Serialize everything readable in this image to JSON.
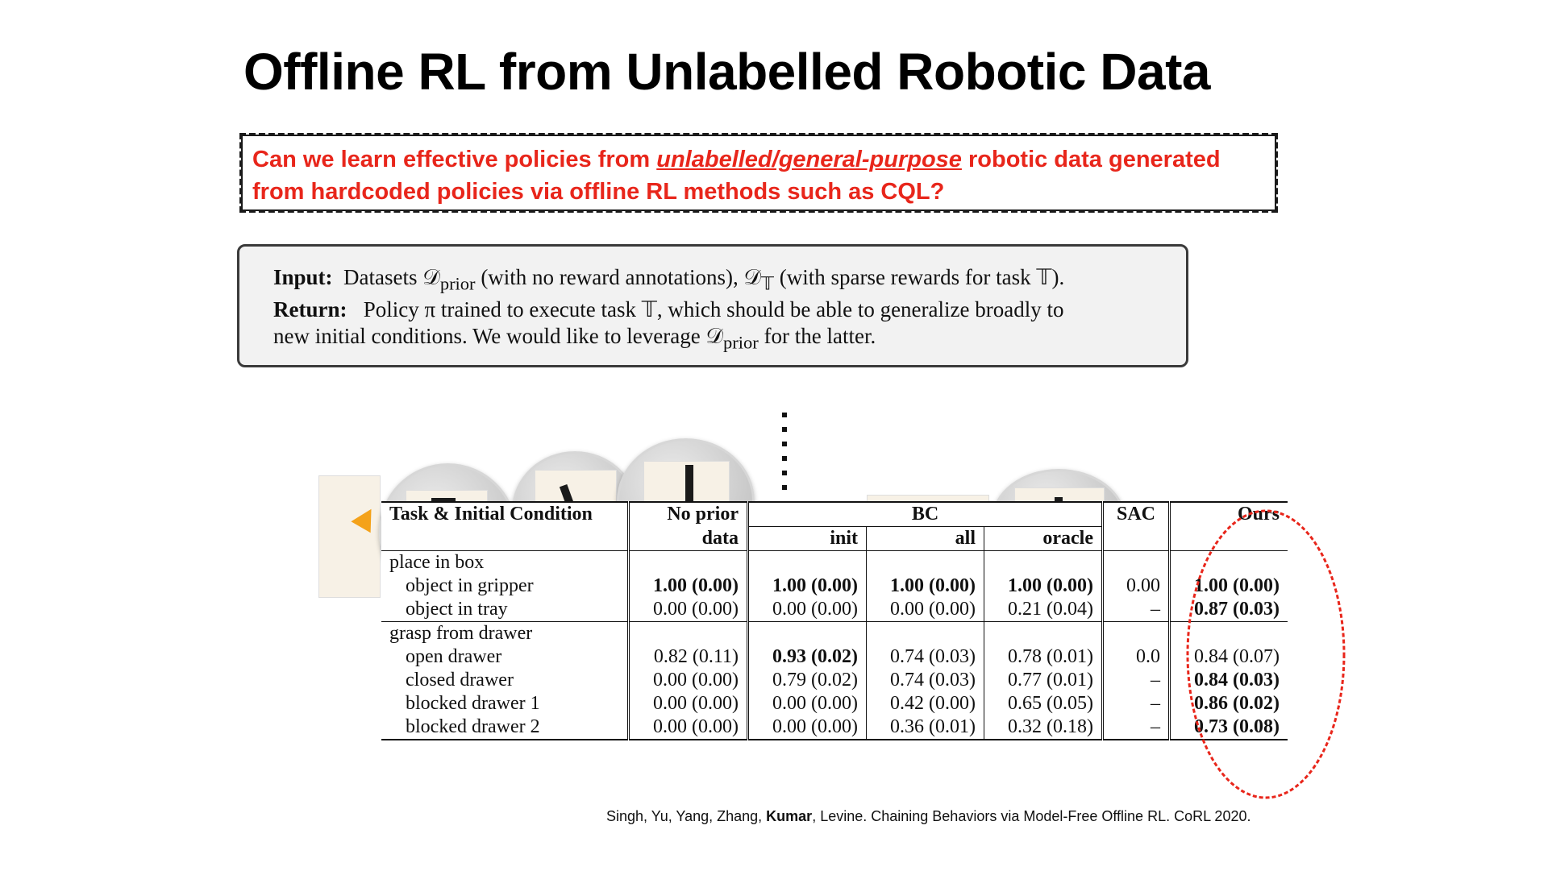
{
  "slide": {
    "title": "Offline RL from Unlabelled Robotic Data",
    "question_part1": "Can we learn effective policies from ",
    "question_emph": "unlabelled/general-purpose",
    "question_part2": " robotic data generated from hardcoded policies via offline RL methods such as CQL?",
    "algo": {
      "input_label": "Input:",
      "input_text_a": "Datasets 𝒟",
      "input_sub_prior": "prior",
      "input_text_b": " (with no reward annotations), 𝒟",
      "input_sub_T": "𝕋",
      "input_text_c": " (with sparse rewards for task 𝕋).",
      "return_label": "Return:",
      "return_text": "Policy π trained to execute task 𝕋, which should be able to generalize broadly to",
      "line3_a": "new initial conditions. We would like to leverage 𝒟",
      "line3_sub": "prior",
      "line3_b": " for the latter."
    },
    "reference_pre": "Singh, Yu, Yang, Zhang, ",
    "reference_bold": "Kumar",
    "reference_post": ", Levine. Chaining Behaviors via Model-Free Offline RL. CoRL 2020."
  },
  "table": {
    "head": {
      "task": "Task & Initial Condition",
      "noprior_1": "No prior",
      "noprior_2": "data",
      "bc": "BC",
      "bc_init": "init",
      "bc_all": "all",
      "bc_oracle": "oracle",
      "sac": "SAC",
      "ours": "Ours"
    },
    "groups": [
      {
        "name": "place in box",
        "rows": [
          {
            "label": "object in gripper",
            "noprior": "1.00 (0.00)",
            "init": "1.00 (0.00)",
            "all": "1.00 (0.00)",
            "oracle": "1.00 (0.00)",
            "sac": "0.00",
            "ours": "1.00 (0.00)"
          },
          {
            "label": "object in tray",
            "noprior": "0.00 (0.00)",
            "init": "0.00 (0.00)",
            "all": "0.00 (0.00)",
            "oracle": "0.21 (0.04)",
            "sac": "–",
            "ours": "0.87 (0.03)"
          }
        ]
      },
      {
        "name": "grasp from drawer",
        "rows": [
          {
            "label": "open drawer",
            "noprior": "0.82 (0.11)",
            "init": "0.93 (0.02)",
            "all": "0.74 (0.03)",
            "oracle": "0.78 (0.01)",
            "sac": "0.0",
            "ours": "0.84 (0.07)"
          },
          {
            "label": "closed drawer",
            "noprior": "0.00 (0.00)",
            "init": "0.79 (0.02)",
            "all": "0.74 (0.03)",
            "oracle": "0.77 (0.01)",
            "sac": "–",
            "ours": "0.84 (0.03)"
          },
          {
            "label": "blocked drawer 1",
            "noprior": "0.00 (0.00)",
            "init": "0.00 (0.00)",
            "all": "0.42 (0.00)",
            "oracle": "0.65 (0.05)",
            "sac": "–",
            "ours": "0.86 (0.02)"
          },
          {
            "label": "blocked drawer 2",
            "noprior": "0.00 (0.00)",
            "init": "0.00 (0.00)",
            "all": "0.36 (0.01)",
            "oracle": "0.32 (0.18)",
            "sac": "–",
            "ours": "0.73 (0.08)"
          }
        ]
      }
    ]
  },
  "colors": {
    "question_red": "#e8261b",
    "ellipse_red": "#e8261b"
  }
}
